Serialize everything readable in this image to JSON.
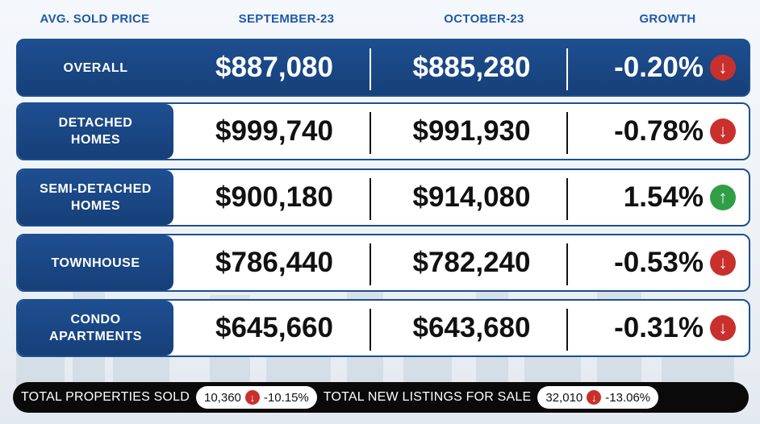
{
  "header": {
    "label": "AVG. SOLD PRICE",
    "col1": "SEPTEMBER-23",
    "col2": "OCTOBER-23",
    "col3": "GROWTH"
  },
  "rows": [
    {
      "label": "OVERALL",
      "sep": "$887,080",
      "oct": "$885,280",
      "growth": "-0.20%",
      "trend": "down"
    },
    {
      "label": "DETACHED\nHOMES",
      "sep": "$999,740",
      "oct": "$991,930",
      "growth": "-0.78%",
      "trend": "down"
    },
    {
      "label": "SEMI-DETACHED\nHOMES",
      "sep": "$900,180",
      "oct": "$914,080",
      "growth": "1.54%",
      "trend": "up"
    },
    {
      "label": "TOWNHOUSE",
      "sep": "$786,440",
      "oct": "$782,240",
      "growth": "-0.53%",
      "trend": "down"
    },
    {
      "label": "CONDO\nAPARTMENTS",
      "sep": "$645,660",
      "oct": "$643,680",
      "growth": "-0.31%",
      "trend": "down"
    }
  ],
  "footer": {
    "sold_label": "TOTAL PROPERTIES SOLD",
    "sold_value": "10,360",
    "sold_change": "-10.15%",
    "listings_label": "TOTAL NEW LISTINGS FOR SALE",
    "listings_value": "32,010",
    "listings_change": "-13.06%"
  },
  "colors": {
    "navy": "#1e4f91",
    "header_text": "#1f5aa6",
    "down": "#c9302c",
    "up": "#2f9e44"
  },
  "icons": {
    "down": "arrow-down-icon",
    "up": "arrow-up-icon"
  }
}
